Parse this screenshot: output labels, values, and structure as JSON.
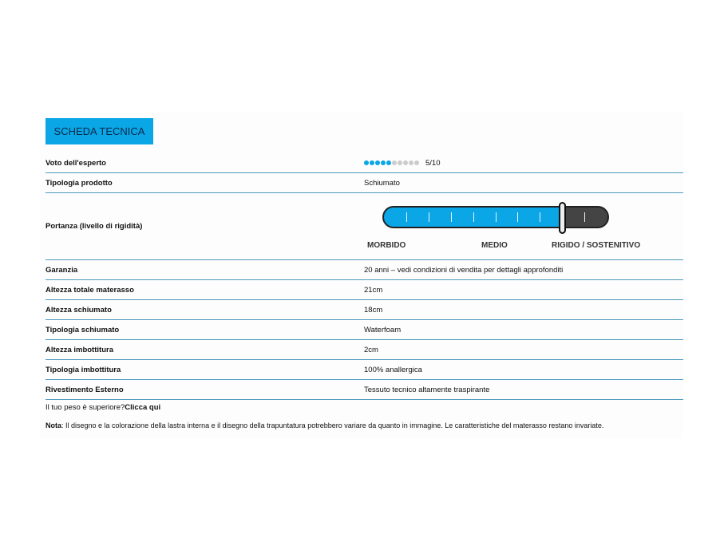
{
  "title": "SCHEDA TECNICA",
  "colors": {
    "accent": "#0aa6e6",
    "divider": "#4f9bbd",
    "slider_empty": "#444444"
  },
  "rating": {
    "label": "Voto dell'esperto",
    "value": 5,
    "max": 10,
    "text": "5/10"
  },
  "product_type": {
    "label": "Tipologia prodotto",
    "value": "Schiumato"
  },
  "firmness": {
    "label": "Portanza (livello di rigidità)",
    "level": 8,
    "max": 10,
    "labels": [
      "MORBIDO",
      "MEDIO",
      "RIGIDO / SOSTENITIVO"
    ]
  },
  "rows": [
    {
      "label": "Garanzia",
      "value": "20 anni – vedi condizioni di vendita per dettagli approfonditi"
    },
    {
      "label": "Altezza totale materasso",
      "value": "21cm"
    },
    {
      "label": "Altezza schiumato",
      "value": "18cm"
    },
    {
      "label": "Tipologia schiumato",
      "value": "Waterfoam"
    },
    {
      "label": "Altezza imbottitura",
      "value": "2cm"
    },
    {
      "label": "Tipologia imbottitura",
      "value": "100% anallergica"
    },
    {
      "label": "Rivestimento Esterno",
      "value": "Tessuto tecnico altamente traspirante"
    }
  ],
  "weight_question": "Il tuo peso è superiore?",
  "weight_link": "Clicca qui",
  "note_label": "Nota",
  "note_text": ": Il disegno e la colorazione della lastra interna e il disegno della trapuntatura potrebbero variare da quanto in immagine. Le caratteristiche del materasso restano invariate."
}
